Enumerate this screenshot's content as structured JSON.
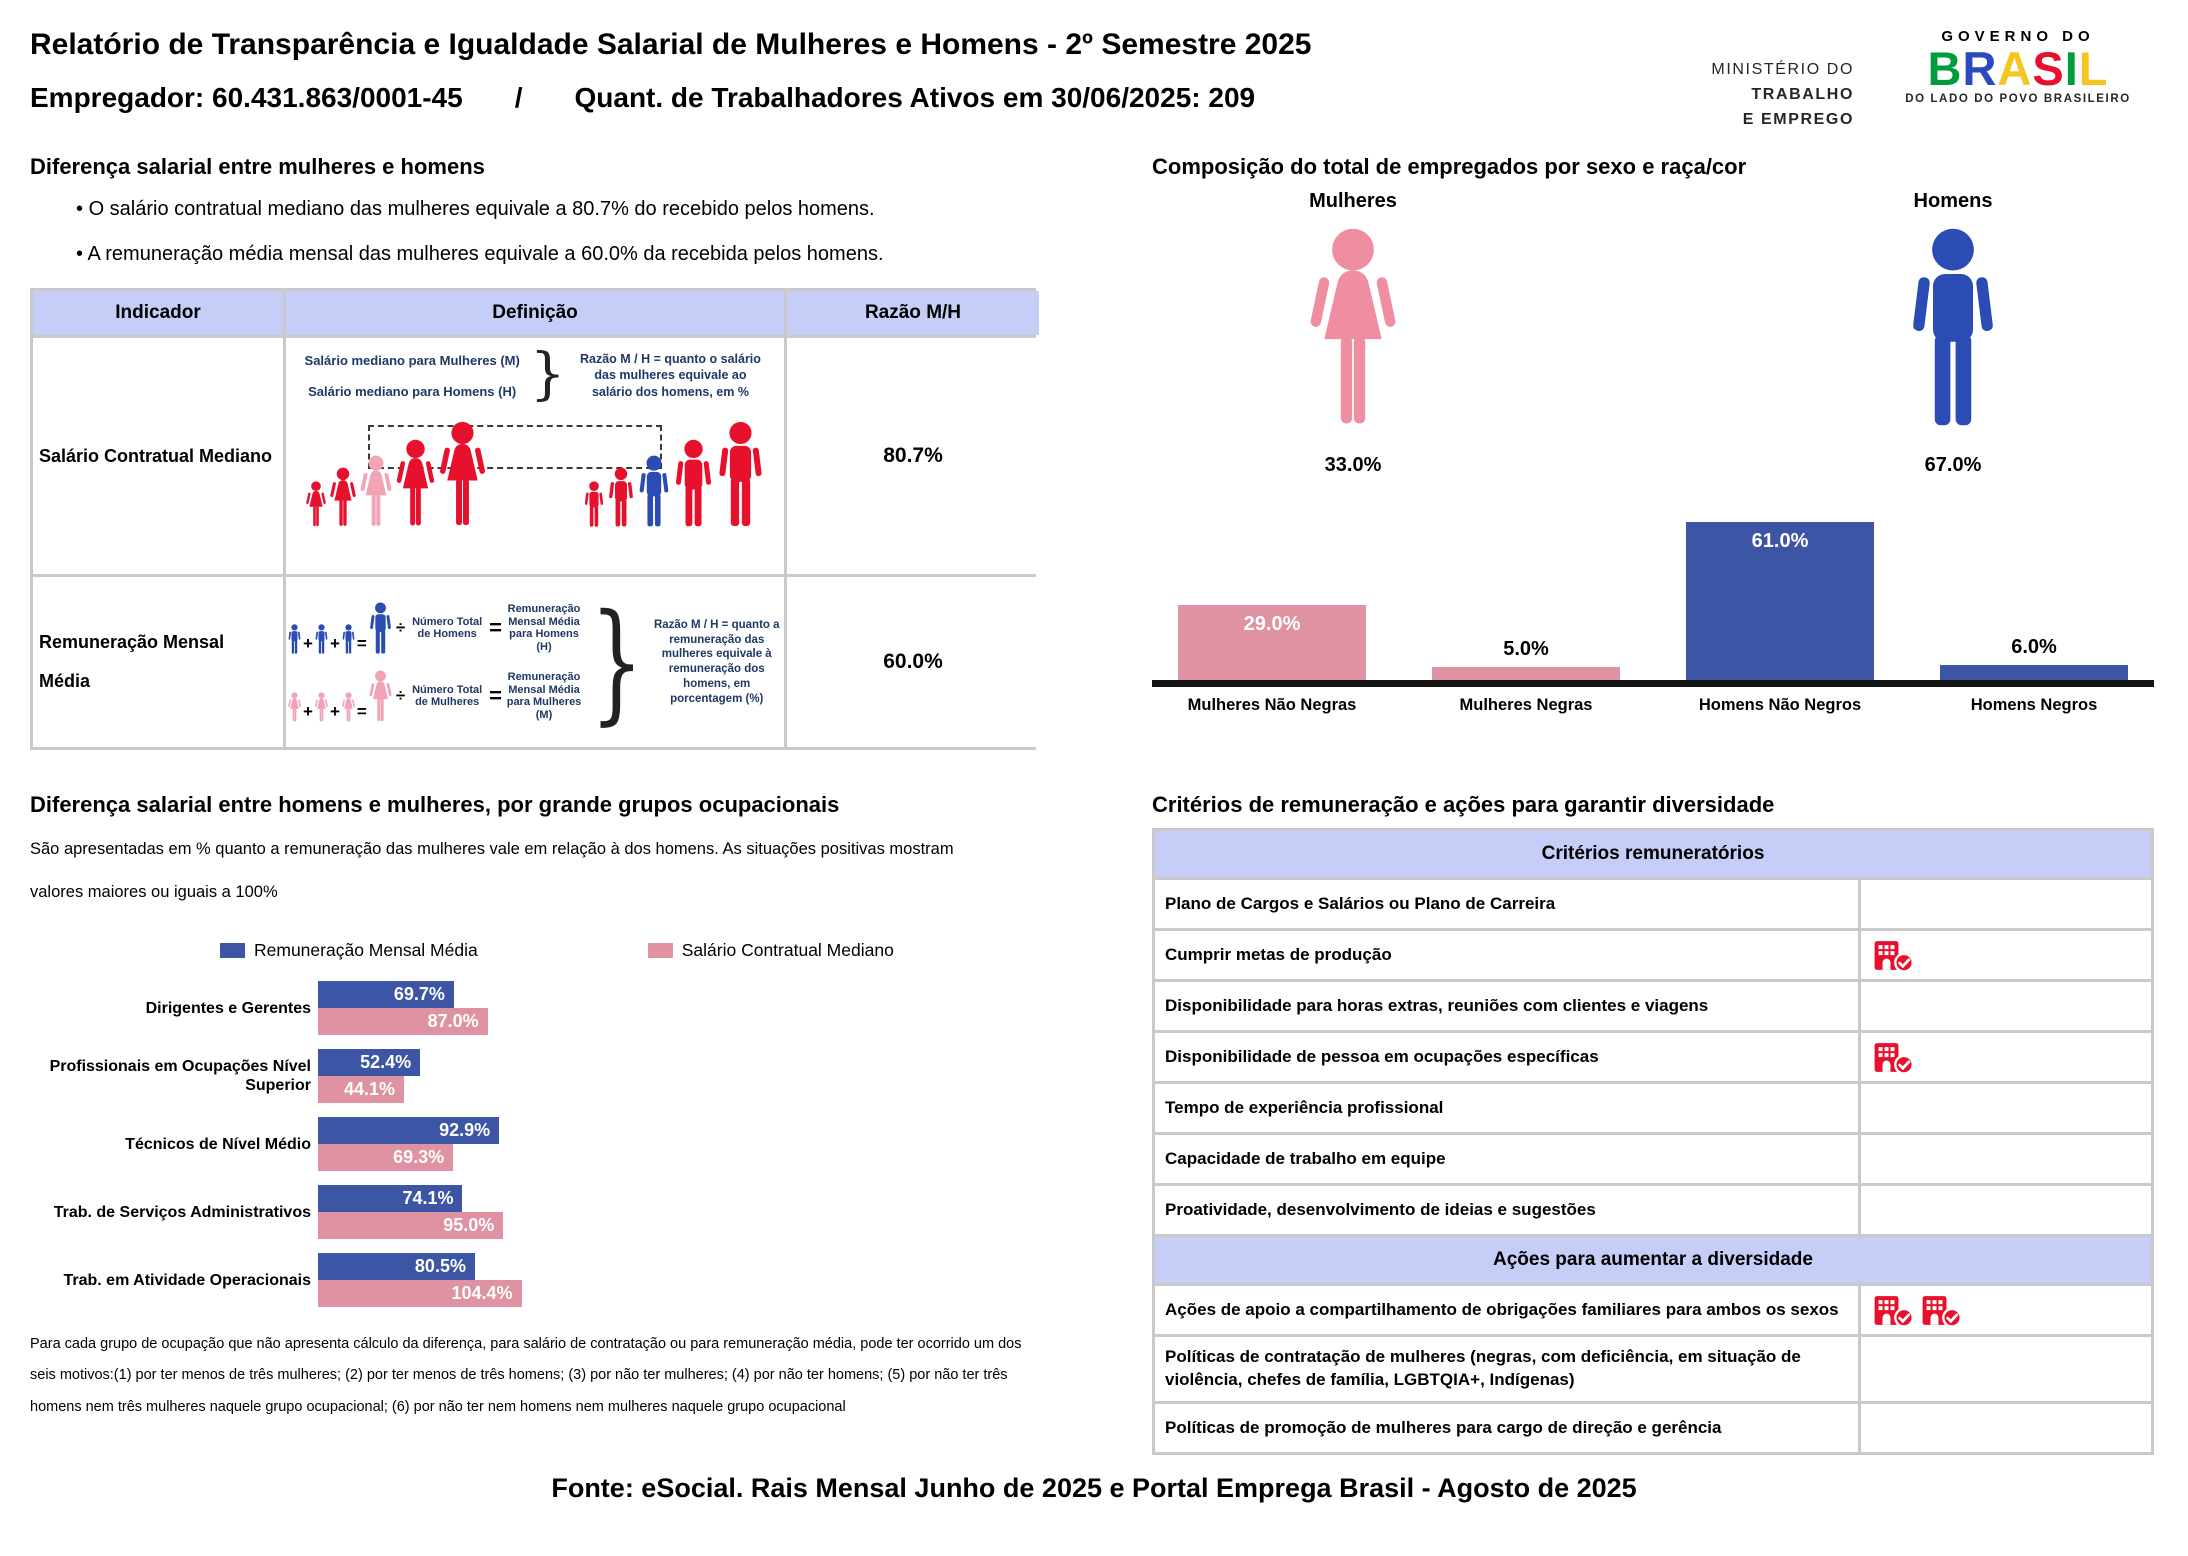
{
  "header": {
    "title": "Relatório de Transparência e Igualdade Salarial de Mulheres e Homens - 2º Semestre 2025",
    "employer": "Empregador: 60.431.863/0001-45",
    "separator": "/",
    "workers": "Quant. de Trabalhadores Ativos em 30/06/2025: 209",
    "ministry": [
      "MINISTÉRIO DO",
      "TRABALHO",
      "E EMPREGO"
    ],
    "gov_logo": {
      "top": "GOVERNO DO",
      "brasil": "BRASIL",
      "bottom": "DO LADO DO POVO BRASILEIRO"
    }
  },
  "salary_gap": {
    "title": "Diferença salarial entre mulheres e homens",
    "bullets": [
      "O salário contratual mediano das mulheres equivale a 80.7% do recebido pelos homens.",
      "A remuneração média mensal das mulheres equivale a 60.0% da recebida pelos homens."
    ],
    "table": {
      "headers": [
        "Indicador",
        "Definição",
        "Razão M/H"
      ],
      "rows": [
        {
          "indicator": "Salário Contratual Mediano",
          "ratio": "80.7%",
          "definition": {
            "line1": "Salário mediano para Mulheres (M)",
            "line2": "Salário mediano para Homens (H)",
            "brace": "}",
            "razao": "Razão M / H = quanto o salário das mulheres equivale ao salário dos homens, em %",
            "female_colors": [
              "red",
              "red",
              "pink_light",
              "red",
              "red"
            ],
            "male_colors": [
              "red",
              "red",
              "royal_blue",
              "red",
              "red"
            ]
          }
        },
        {
          "indicator": "Remuneração Mensal Média",
          "ratio": "60.0%",
          "definition": {
            "operators": {
              "plus": "+",
              "equals": "=",
              "divide": "÷"
            },
            "men": {
              "count_label": "Número Total de Homens",
              "result_label": "Remuneração Mensal Média para Homens (H)"
            },
            "women": {
              "count_label": "Número Total de Mulheres",
              "result_label": "Remuneração Mensal Média para Mulheres (M)"
            },
            "brace": "}",
            "razao": "Razão M / H = quanto a remuneração das mulheres equivale à remuneração dos homens, em porcentagem (%)"
          }
        }
      ]
    }
  },
  "composition": {
    "title": "Composição do total de empregados por sexo e raça/cor",
    "female": {
      "label": "Mulheres",
      "value": "33.0%"
    },
    "male": {
      "label": "Homens",
      "value": "67.0%"
    },
    "chart_data": {
      "type": "bar",
      "categories": [
        "Mulheres Não Negras",
        "Mulheres Negras",
        "Homens Não Negros",
        "Homens Negros"
      ],
      "values": [
        29.0,
        5.0,
        61.0,
        6.0
      ],
      "labels": [
        "29.0%",
        "5.0%",
        "61.0%",
        "6.0%"
      ],
      "bar_colors": [
        "bar_pink",
        "bar_pink",
        "bar_blue",
        "bar_blue"
      ],
      "ylim": [
        0,
        65
      ],
      "grid": false,
      "legend_position": "none"
    }
  },
  "occupational": {
    "title": "Diferença salarial entre homens e mulheres, por grande grupos ocupacionais",
    "subtitle": "São apresentadas em % quanto a remuneração das mulheres vale em relação à dos homens. As situações positivas mostram valores maiores ou iguais a 100%",
    "legend": [
      {
        "label": "Remuneração Mensal Média",
        "color": "bar_blue"
      },
      {
        "label": "Salário Contratual Mediano",
        "color": "bar_pink"
      }
    ],
    "chart_data": {
      "type": "bar",
      "orientation": "horizontal",
      "categories": [
        "Dirigentes e Gerentes",
        "Profissionais em Ocupações Nível Superior",
        "Técnicos de Nível Médio",
        "Trab. de Serviços Administrativos",
        "Trab. em Atividade Operacionais"
      ],
      "series": [
        {
          "name": "Remuneração Mensal Média",
          "values": [
            69.7,
            52.4,
            92.9,
            74.1,
            80.5
          ],
          "labels": [
            "69.7%",
            "52.4%",
            "92.9%",
            "74.1%",
            "80.5%"
          ],
          "color": "bar_blue"
        },
        {
          "name": "Salário Contratual Mediano",
          "values": [
            87.0,
            44.1,
            69.3,
            95.0,
            104.4
          ],
          "labels": [
            "87.0%",
            "44.1%",
            "69.3%",
            "95.0%",
            "104.4%"
          ],
          "color": "bar_pink"
        }
      ],
      "xlim": [
        0,
        110
      ],
      "grid": false,
      "legend_position": "top"
    },
    "footnote": "Para cada grupo de ocupação que não apresenta cálculo da diferença, para salário de contratação ou para remuneração média, pode ter ocorrido um dos seis motivos:(1) por ter menos de três mulheres; (2) por ter menos de três homens; (3) por não ter mulheres; (4) por não ter homens; (5) por não ter três homens nem três mulheres naquele grupo ocupacional; (6) por não ter nem homens nem mulheres naquele grupo ocupacional"
  },
  "criteria": {
    "title": "Critérios de remuneração e ações para garantir diversidade",
    "sections": [
      {
        "header": "Critérios remuneratórios",
        "rows": [
          {
            "label": "Plano de Cargos e Salários ou Plano de Carreira",
            "icons": 0
          },
          {
            "label": "Cumprir metas de produção",
            "icons": 1
          },
          {
            "label": "Disponibilidade para horas extras, reuniões com clientes e viagens",
            "icons": 0
          },
          {
            "label": "Disponibilidade de pessoa em ocupações específicas",
            "icons": 1
          },
          {
            "label": "Tempo de experiência profissional",
            "icons": 0
          },
          {
            "label": "Capacidade de trabalho em equipe",
            "icons": 0
          },
          {
            "label": "Proatividade, desenvolvimento de ideias e sugestões",
            "icons": 0
          }
        ]
      },
      {
        "header": "Ações para aumentar a diversidade",
        "rows": [
          {
            "label": "Ações de apoio a compartilhamento de obrigações familiares para ambos os sexos",
            "icons": 2
          },
          {
            "label": "Políticas de contratação de mulheres (negras, com deficiência, em situação de violência, chefes de família, LGBTQIA+, Indígenas)",
            "icons": 0
          },
          {
            "label": "Políticas de promoção de mulheres para cargo de direção e gerência",
            "icons": 0
          }
        ]
      }
    ]
  },
  "footer": {
    "source": "Fonte: eSocial. Rais Mensal Junho de 2025 e Portal Emprega Brasil - Agosto de 2025"
  },
  "colors": {
    "red": "#e8112d",
    "pink_light": "#f2a3b6",
    "royal_blue": "#2c4cb5",
    "bar_blue": "#3c55a4",
    "bar_pink": "#de92a2",
    "icon_pink": "#ef8da1",
    "icon_blue": "#2c4cb5",
    "header_lavender": "#c6cdf7",
    "navy_text": "#1f3864",
    "check_red": "#e8112d",
    "brasil_letters": [
      "#009c3b",
      "#2b49c0",
      "#f5c521",
      "#e8112d",
      "#009c3b",
      "#f5c521"
    ]
  }
}
